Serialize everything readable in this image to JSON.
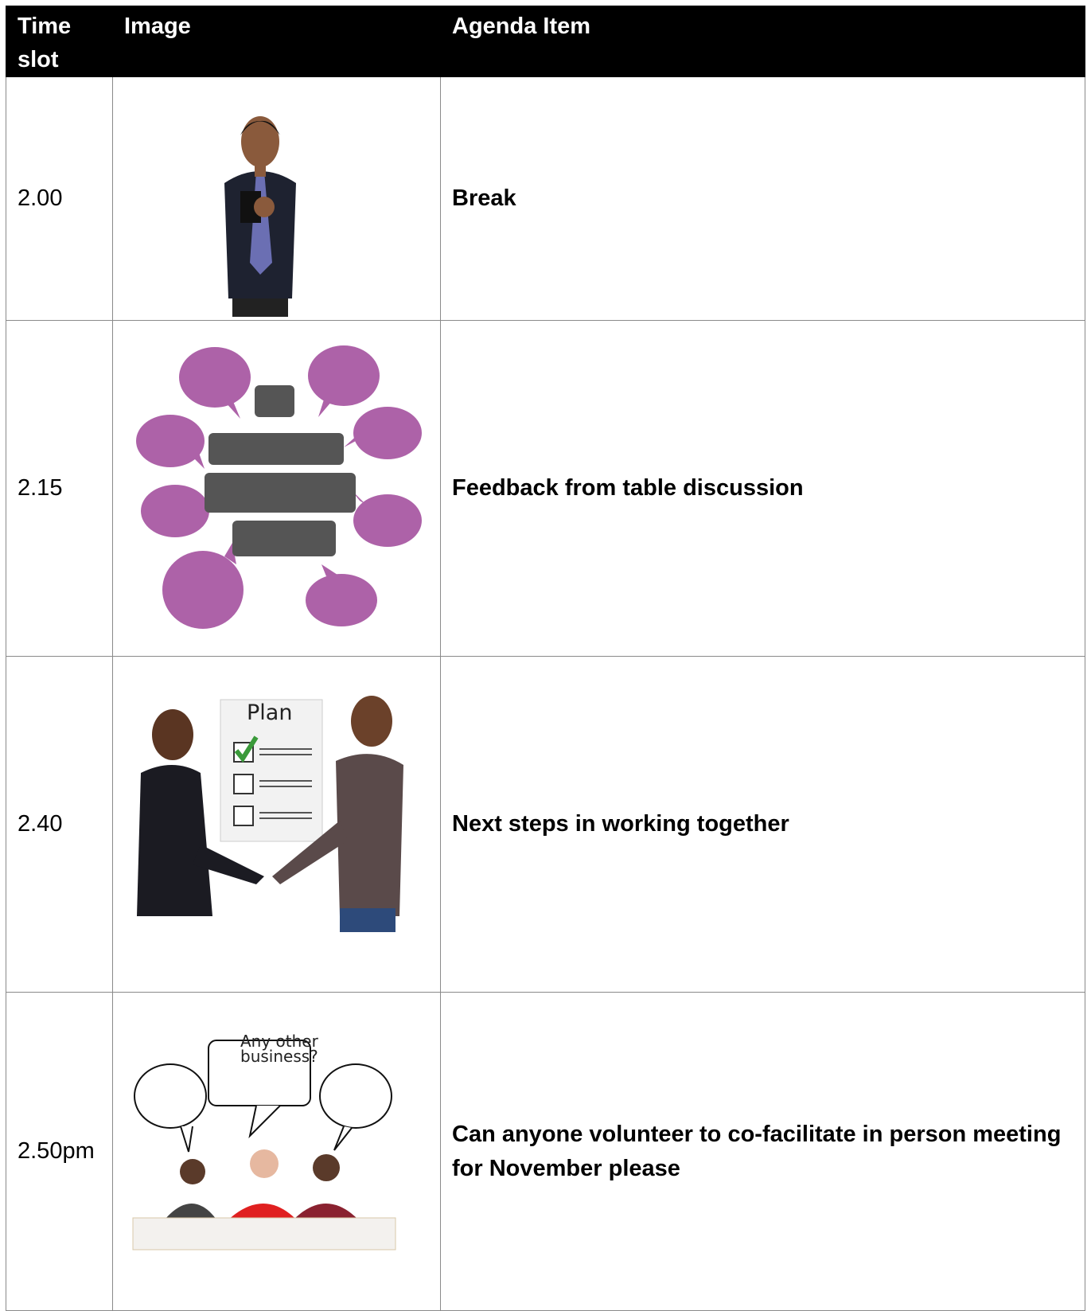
{
  "table": {
    "header": [
      "Time slot",
      "Image",
      "Agenda Item"
    ],
    "rows": [
      {
        "time": "2.00",
        "item": "Break"
      },
      {
        "time": "2.15",
        "item": "Feedback from table discussion"
      },
      {
        "time": "2.40",
        "item": "Next steps in working together",
        "image_text": "Plan"
      },
      {
        "time": "2.50pm",
        "item": "Can anyone volunteer to co-facilitate in person meeting for November please",
        "image_text": "Any other business?"
      }
    ]
  }
}
